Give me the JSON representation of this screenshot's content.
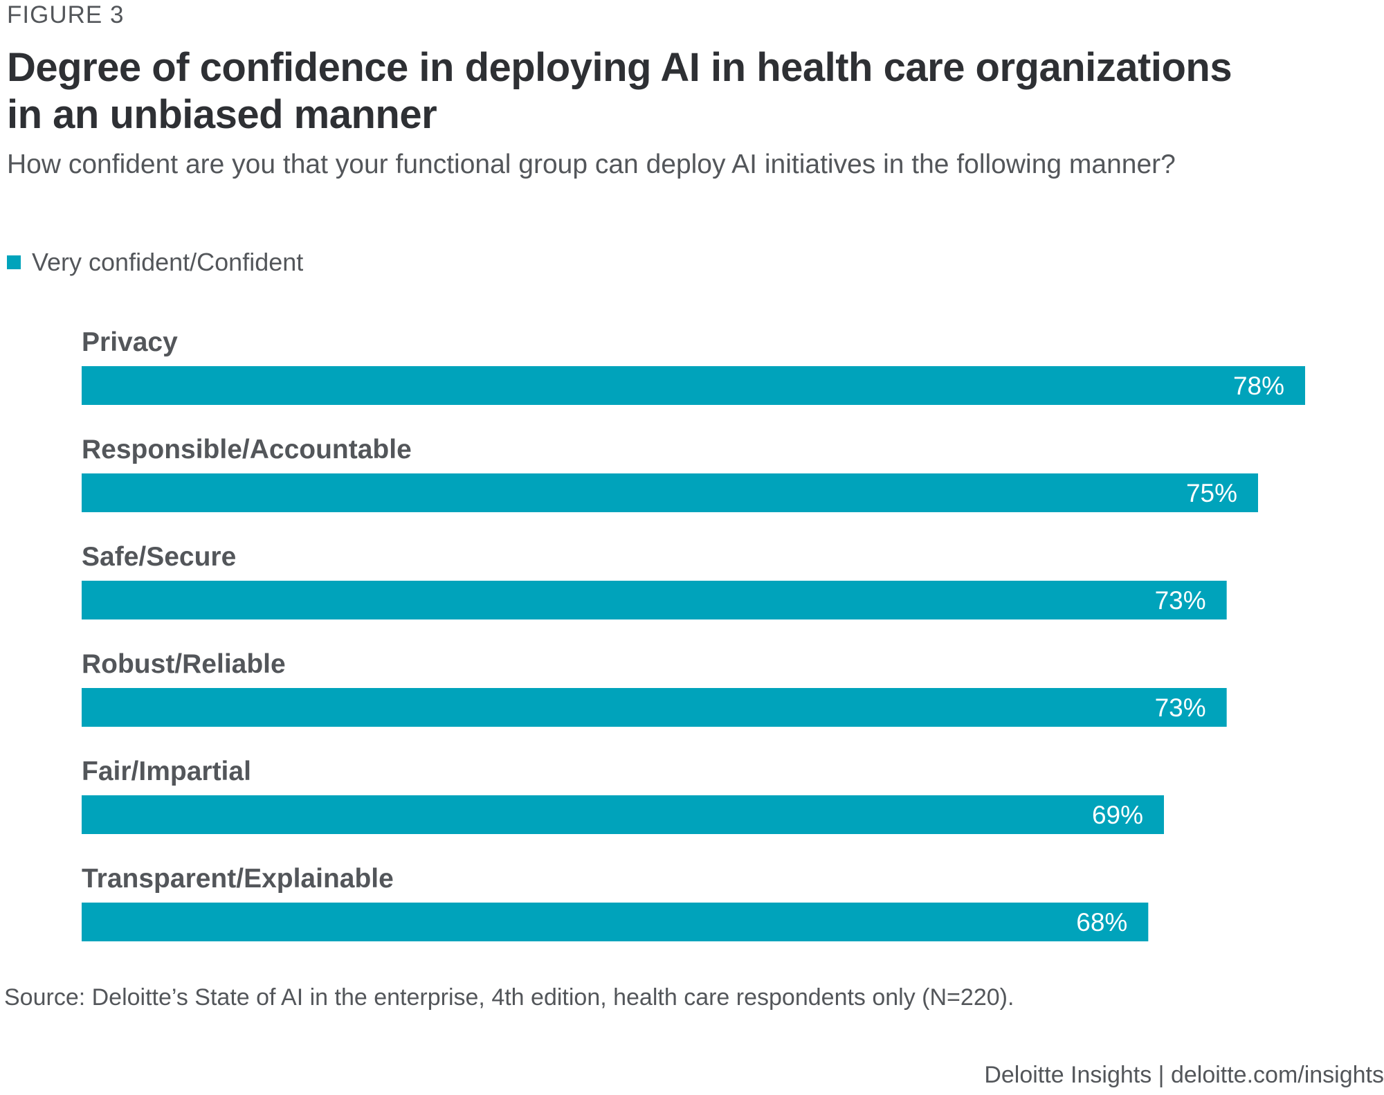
{
  "figure_label": "FIGURE 3",
  "chart_data": {
    "type": "bar",
    "orientation": "horizontal",
    "title": "Degree of confidence in deploying AI in health care organizations in an unbiased manner",
    "subtitle": "How confident are you that your functional group can deploy AI initiatives in the following manner?",
    "categories": [
      "Privacy",
      "Responsible/Accountable",
      "Safe/Secure",
      "Robust/Reliable",
      "Fair/Impartial",
      "Transparent/Explainable"
    ],
    "series": [
      {
        "name": "Very confident/Confident",
        "values": [
          78,
          75,
          73,
          73,
          69,
          68
        ],
        "value_labels": [
          "78%",
          "75%",
          "73%",
          "73%",
          "69%",
          "68%"
        ],
        "color": "#00a3bb"
      }
    ],
    "xlim": [
      0,
      78
    ],
    "grid": false,
    "legend_position": "top-left"
  },
  "source": "Source: Deloitte’s State of AI in the enterprise, 4th edition, health care respondents only (N=220).",
  "footer": "Deloitte Insights | deloitte.com/insights"
}
